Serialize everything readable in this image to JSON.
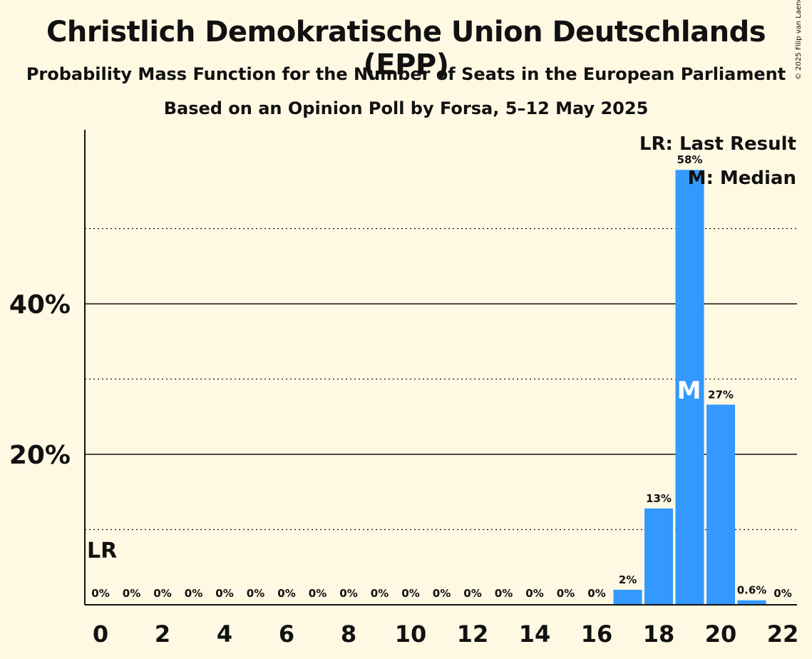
{
  "title": "Christlich Demokratische Union Deutschlands (EPP)",
  "subtitle": "Probability Mass Function for the Number of Seats in the European Parliament",
  "subtitle2": "Based on an Opinion Poll by Forsa, 5–12 May 2025",
  "copyright": "© 2025 Filip van Laenen",
  "colors": {
    "background": "#fff8e3",
    "bar": "#3399ff",
    "text": "#111111"
  },
  "chart_data": {
    "type": "bar",
    "title": "Christlich Demokratische Union Deutschlands (EPP)",
    "x": [
      0,
      1,
      2,
      3,
      4,
      5,
      6,
      7,
      8,
      9,
      10,
      11,
      12,
      13,
      14,
      15,
      16,
      17,
      18,
      19,
      20,
      21,
      22
    ],
    "values": [
      0,
      0,
      0,
      0,
      0,
      0,
      0,
      0,
      0,
      0,
      0,
      0,
      0,
      0,
      0,
      0,
      0,
      2,
      12.8,
      57.8,
      26.6,
      0.6,
      0
    ],
    "value_labels": [
      "0%",
      "0%",
      "0%",
      "0%",
      "0%",
      "0%",
      "0%",
      "0%",
      "0%",
      "0%",
      "0%",
      "0%",
      "0%",
      "0%",
      "0%",
      "0%",
      "0%",
      "2%",
      "13%",
      "58%",
      "27%",
      "0.6%",
      "0%"
    ],
    "x_tick_labels": [
      "0",
      "2",
      "4",
      "6",
      "8",
      "10",
      "12",
      "14",
      "16",
      "18",
      "20",
      "22"
    ],
    "y_tick_labels": [
      "20%",
      "40%"
    ],
    "ylim": [
      0,
      63
    ],
    "major_grid": [
      20,
      40
    ],
    "minor_grid": [
      10,
      30,
      50
    ],
    "last_result": {
      "seat": 0,
      "label": "LR"
    },
    "median": {
      "seat": 19,
      "label": "M"
    },
    "legend": {
      "position": "top-right",
      "entries": [
        "LR: Last Result",
        "M: Median"
      ]
    }
  }
}
